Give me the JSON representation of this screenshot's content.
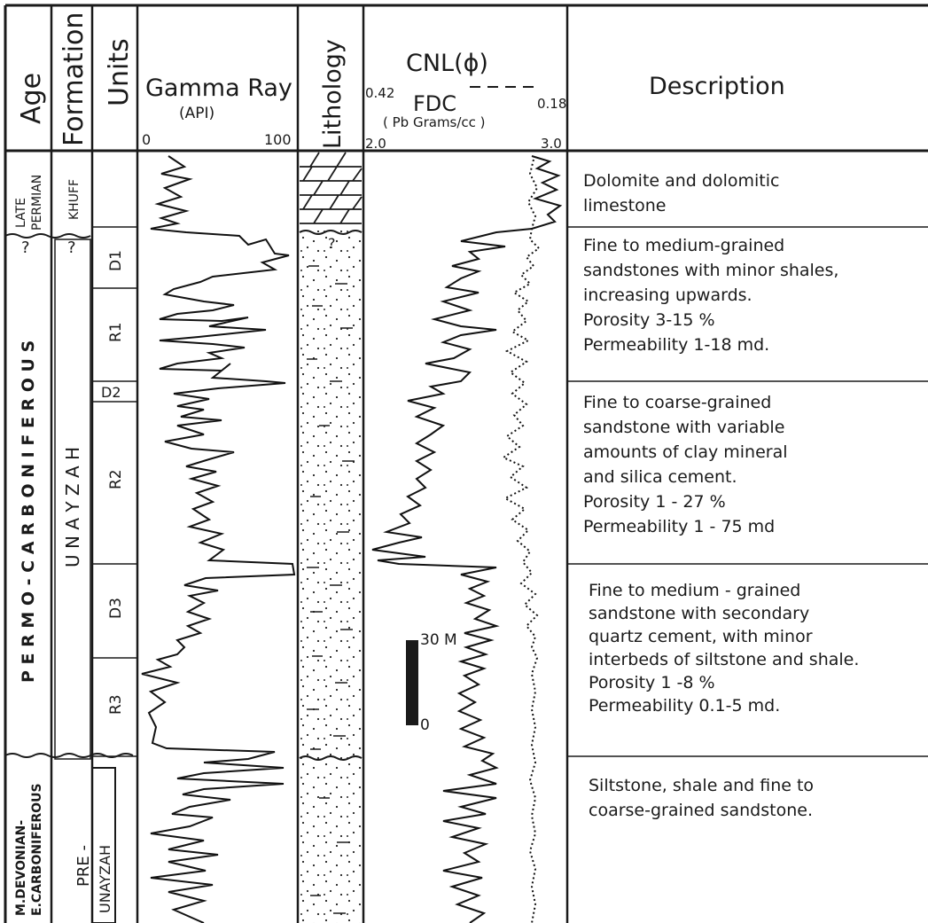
{
  "headers": {
    "age": "Age",
    "formation": "Formation",
    "units": "Units",
    "gamma_ray": "Gamma Ray",
    "gamma_ray_unit": "(API)",
    "gamma_min": "0",
    "gamma_max": "100",
    "lithology": "Lithology",
    "cnl": "CNL(ϕ)",
    "cnl_left": "0.42",
    "cnl_right": "0.18",
    "fdc": "FDC",
    "fdc_unit": "( Pb Grams/cc )",
    "fdc_left": "2.0",
    "fdc_right": "3.0",
    "description": "Description"
  },
  "ages": {
    "late_permian": [
      "LATE",
      "PERMIAN"
    ],
    "permo_carboniferous": "P E R M O - C A R B O N I F E R O U S",
    "devonian": [
      "M.DEVONIAN-",
      "E.CARBONIFEROUS"
    ],
    "question": "?"
  },
  "formations": {
    "khuff": "KHUFF",
    "unayzah": "U N A Y Z A H",
    "pre_unayzah": [
      "PRE -",
      "UNAYZAH"
    ],
    "question": "?"
  },
  "units": [
    "D1",
    "R1",
    "D2",
    "R2",
    "D3",
    "R3"
  ],
  "scale_bar": {
    "top": "30 M",
    "bottom": "0"
  },
  "lithology_marker": "?",
  "descriptions": [
    [
      "Dolomite and dolomitic",
      "limestone"
    ],
    [
      "Fine to medium-grained",
      "sandstones with minor shales,",
      "increasing upwards.",
      "Porosity 3-15 %",
      "Permeability   1-18 md."
    ],
    [
      "Fine to coarse-grained",
      "sandstone with variable",
      "amounts of clay mineral",
      "and silica cement.",
      "Porosity 1 - 27 %",
      "Permeability 1 - 75 md"
    ],
    [
      "Fine to medium - grained",
      "sandstone with secondary",
      "quartz cement, with minor",
      "interbeds of siltstone and shale.",
      "Porosity 1 -8 %",
      "Permeability 0.1-5 md."
    ],
    [
      "Siltstone, shale and fine to",
      "coarse-grained sandstone."
    ]
  ]
}
